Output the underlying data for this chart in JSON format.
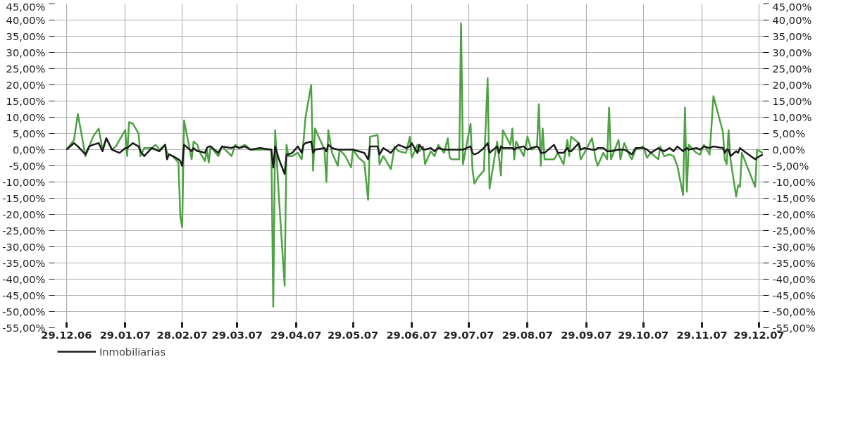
{
  "chart_data": {
    "type": "line",
    "x": [
      "2006-12-29",
      "2007-01-02",
      "2007-01-04",
      "2007-01-08",
      "2007-01-10",
      "2007-01-12",
      "2007-01-15",
      "2007-01-17",
      "2007-01-19",
      "2007-01-22",
      "2007-01-24",
      "2007-01-26",
      "2007-01-29",
      "2007-01-30",
      "2007-01-31",
      "2007-02-02",
      "2007-02-05",
      "2007-02-06",
      "2007-02-08",
      "2007-02-12",
      "2007-02-14",
      "2007-02-16",
      "2007-02-19",
      "2007-02-20",
      "2007-02-21",
      "2007-02-23",
      "2007-02-26",
      "2007-02-27",
      "2007-02-28",
      "2007-03-01",
      "2007-03-05",
      "2007-03-06",
      "2007-03-08",
      "2007-03-09",
      "2007-03-12",
      "2007-03-13",
      "2007-03-14",
      "2007-03-15",
      "2007-03-19",
      "2007-03-21",
      "2007-03-26",
      "2007-03-28",
      "2007-03-30",
      "2007-04-02",
      "2007-04-05",
      "2007-04-10",
      "2007-04-16",
      "2007-04-17",
      "2007-04-18",
      "2007-04-20",
      "2007-04-23",
      "2007-04-24",
      "2007-04-25",
      "2007-04-27",
      "2007-04-30",
      "2007-05-02",
      "2007-05-03",
      "2007-05-04",
      "2007-05-07",
      "2007-05-08",
      "2007-05-09",
      "2007-05-14",
      "2007-05-15",
      "2007-05-16",
      "2007-05-18",
      "2007-05-21",
      "2007-05-22",
      "2007-05-25",
      "2007-05-28",
      "2007-05-29",
      "2007-06-01",
      "2007-06-04",
      "2007-06-06",
      "2007-06-07",
      "2007-06-11",
      "2007-06-12",
      "2007-06-14",
      "2007-06-18",
      "2007-06-20",
      "2007-06-22",
      "2007-06-26",
      "2007-06-28",
      "2007-06-29",
      "2007-07-02",
      "2007-07-03",
      "2007-07-05",
      "2007-07-06",
      "2007-07-09",
      "2007-07-11",
      "2007-07-13",
      "2007-07-16",
      "2007-07-18",
      "2007-07-19",
      "2007-07-20",
      "2007-07-24",
      "2007-07-25",
      "2007-07-26",
      "2007-07-30",
      "2007-07-31",
      "2007-08-01",
      "2007-08-03",
      "2007-08-06",
      "2007-08-08",
      "2007-08-09",
      "2007-08-13",
      "2007-08-14",
      "2007-08-15",
      "2007-08-16",
      "2007-08-20",
      "2007-08-21",
      "2007-08-22",
      "2007-08-23",
      "2007-08-27",
      "2007-08-29",
      "2007-08-31",
      "2007-09-03",
      "2007-09-04",
      "2007-09-05",
      "2007-09-06",
      "2007-09-07",
      "2007-09-12",
      "2007-09-14",
      "2007-09-17",
      "2007-09-19",
      "2007-09-20",
      "2007-09-21",
      "2007-09-25",
      "2007-09-26",
      "2007-09-28",
      "2007-10-02",
      "2007-10-04",
      "2007-10-05",
      "2007-10-08",
      "2007-10-10",
      "2007-10-11",
      "2007-10-12",
      "2007-10-16",
      "2007-10-17",
      "2007-10-19",
      "2007-10-22",
      "2007-10-23",
      "2007-10-25",
      "2007-10-29",
      "2007-10-31",
      "2007-11-02",
      "2007-11-06",
      "2007-11-07",
      "2007-11-09",
      "2007-11-12",
      "2007-11-14",
      "2007-11-16",
      "2007-11-19",
      "2007-11-20",
      "2007-11-21",
      "2007-11-22",
      "2007-11-26",
      "2007-11-28",
      "2007-11-30",
      "2007-12-03",
      "2007-12-05",
      "2007-12-10",
      "2007-12-11",
      "2007-12-12",
      "2007-12-13",
      "2007-12-14",
      "2007-12-17",
      "2007-12-18",
      "2007-12-19",
      "2007-12-20",
      "2007-12-27",
      "2007-12-28",
      "2007-12-31"
    ],
    "series": [
      {
        "name": "Inmobiliarias",
        "color": "#1a1a1a",
        "values": [
          0,
          2,
          1,
          -1.5,
          1,
          1.5,
          2,
          -0.5,
          3.5,
          0,
          -0.5,
          -1,
          0.5,
          0.5,
          1,
          2,
          1,
          -0.5,
          -2,
          0.5,
          0,
          -0.5,
          1.5,
          -3,
          -1.5,
          -2,
          -3,
          -3.5,
          -5,
          1.5,
          -0.5,
          0.5,
          -0.5,
          -0.5,
          -1,
          0.5,
          1,
          1,
          -1,
          1,
          0.5,
          1,
          0.5,
          1,
          0,
          0.5,
          0,
          -5.5,
          1,
          -3,
          -7.5,
          -1.5,
          -1.5,
          -1,
          1,
          -1,
          1.5,
          2,
          2.5,
          -1,
          0,
          0.5,
          -0.5,
          1.5,
          0.5,
          0,
          0,
          0,
          0,
          0,
          -0.5,
          -1,
          -3,
          1,
          1,
          -1.5,
          0.5,
          -1,
          0.5,
          1.5,
          0.5,
          1,
          2,
          -1,
          1.5,
          0,
          0,
          0.5,
          -0.5,
          0.5,
          0,
          0,
          0,
          0,
          0,
          0,
          0,
          1,
          -1,
          -1.5,
          -1,
          0.5,
          2,
          -1,
          1,
          -1,
          1,
          0.5,
          0.5,
          0.5,
          0,
          0.5,
          1,
          0,
          0.5,
          1,
          0.5,
          -1,
          -1,
          -1,
          1.5,
          -1,
          -1,
          0.5,
          -0.5,
          -0.5,
          2,
          0,
          0.5,
          0,
          0,
          0.5,
          0.5,
          -0.5,
          -0.5,
          -0.5,
          0,
          0,
          0,
          -1,
          -1.5,
          0.5,
          0.5,
          0,
          -1,
          0.5,
          0,
          -0.5,
          0.5,
          -0.5,
          1,
          -0.5,
          0,
          0.5,
          0,
          0.5,
          0,
          1,
          0.5,
          1,
          0.5,
          -1,
          0,
          0,
          -2,
          -0.5,
          -1,
          0.5,
          0,
          -3,
          -2.5,
          -1.5
        ]
      },
      {
        "color": "#4ea244",
        "values": [
          0,
          3,
          11,
          -2,
          1,
          4,
          6.5,
          0,
          3.5,
          0,
          1,
          3,
          6,
          -2,
          8.5,
          8,
          5,
          -2,
          0.5,
          0.5,
          1.5,
          0,
          1.5,
          -1,
          -1.5,
          -2,
          -4,
          -20.5,
          -24,
          9,
          -3,
          2.5,
          1.5,
          -0.5,
          -3.5,
          0,
          -4,
          1,
          -2,
          1,
          -2,
          1.5,
          0.5,
          1.5,
          0,
          0,
          0,
          -48.5,
          6,
          -15,
          -42,
          1.5,
          -2,
          -2,
          -1,
          -3,
          3,
          10,
          20,
          -6.5,
          6.5,
          0,
          -10,
          6,
          -1,
          -5,
          0,
          -2,
          -5.5,
          0,
          -2.5,
          -4,
          -15.5,
          4,
          4.5,
          -4.5,
          -2,
          -6,
          1,
          -0.5,
          -1,
          4,
          -2.5,
          1.5,
          -0.5,
          1,
          -4.5,
          -0.5,
          -2,
          1.5,
          -1,
          3.5,
          -2.5,
          -3,
          -3,
          39,
          -4.5,
          8,
          -6,
          -10.5,
          -8.5,
          -6.5,
          22,
          -12,
          2.5,
          -2.5,
          -8,
          6,
          1.5,
          6.5,
          -3,
          2.5,
          -2,
          4,
          0,
          1,
          14,
          -5,
          6.5,
          -3,
          -3,
          -1,
          -4.5,
          3,
          -2,
          4,
          2,
          -3,
          -1,
          3.5,
          -3,
          -5,
          -1,
          -3,
          13,
          -3,
          3,
          -3,
          2,
          -2,
          -3,
          0,
          1,
          -2.5,
          -1,
          -3,
          1,
          -2,
          -1.5,
          -2,
          -5,
          -14,
          13,
          -13,
          1.5,
          -1,
          -1.5,
          1.5,
          -1.5,
          16.5,
          5.5,
          -3,
          -4.5,
          6,
          -3,
          -14.5,
          -11,
          -11.5,
          -1,
          -11.5,
          0,
          -1
        ]
      }
    ],
    "xlim": [
      "2006-12-22",
      "2008-01-01"
    ],
    "xticks": [
      {
        "value": "2006-12-29",
        "label": "29.12.06"
      },
      {
        "value": "2007-01-29",
        "label": "29.01.07"
      },
      {
        "value": "2007-02-28",
        "label": "28.02.07"
      },
      {
        "value": "2007-03-29",
        "label": "29.03.07"
      },
      {
        "value": "2007-04-29",
        "label": "29.04.07"
      },
      {
        "value": "2007-05-29",
        "label": "29.05.07"
      },
      {
        "value": "2007-06-29",
        "label": "29.06.07"
      },
      {
        "value": "2007-07-29",
        "label": "29.07.07"
      },
      {
        "value": "2007-08-29",
        "label": "29.08.07"
      },
      {
        "value": "2007-09-29",
        "label": "29.09.07"
      },
      {
        "value": "2007-10-29",
        "label": "29.10.07"
      },
      {
        "value": "2007-11-29",
        "label": "29.11.07"
      },
      {
        "value": "2007-12-29",
        "label": "29.12.07"
      }
    ],
    "ylim": [
      -55,
      45
    ],
    "yticks": [
      {
        "value": 45,
        "label": "45,00%"
      },
      {
        "value": 40,
        "label": "40,00%"
      },
      {
        "value": 35,
        "label": "35,00%"
      },
      {
        "value": 30,
        "label": "30,00%"
      },
      {
        "value": 25,
        "label": "25,00%"
      },
      {
        "value": 20,
        "label": "20,00%"
      },
      {
        "value": 15,
        "label": "15,00%"
      },
      {
        "value": 10,
        "label": "10,00%"
      },
      {
        "value": 5,
        "label": "5,00%"
      },
      {
        "value": 0,
        "label": "0,00%"
      },
      {
        "value": -5,
        "label": "-5,00%"
      },
      {
        "value": -10,
        "label": "-10,00%"
      },
      {
        "value": -15,
        "label": "-15,00%"
      },
      {
        "value": -20,
        "label": "-20,00%"
      },
      {
        "value": -25,
        "label": "-25,00%"
      },
      {
        "value": -30,
        "label": "-30,00%"
      },
      {
        "value": -35,
        "label": "-35,00%"
      },
      {
        "value": -40,
        "label": "-40,00%"
      },
      {
        "value": -45,
        "label": "-45,00%"
      },
      {
        "value": -50,
        "label": "-50,00%"
      },
      {
        "value": -55,
        "label": "-55,00%"
      }
    ],
    "y2lim": [
      -55,
      45
    ],
    "y2ticks": [
      {
        "value": 45,
        "label": "45,00%"
      },
      {
        "value": 40,
        "label": "40,00%"
      },
      {
        "value": 35,
        "label": "35,00%"
      },
      {
        "value": 30,
        "label": "30,00%"
      },
      {
        "value": 25,
        "label": "25,00%"
      },
      {
        "value": 20,
        "label": "20,00%"
      },
      {
        "value": 15,
        "label": "15,00%"
      },
      {
        "value": 10,
        "label": "10,00%"
      },
      {
        "value": 5,
        "label": "5,00%"
      },
      {
        "value": 0,
        "label": "0,00%"
      },
      {
        "value": -5,
        "label": "-5,00%"
      },
      {
        "value": -10,
        "label": "-10,00%"
      },
      {
        "value": -15,
        "label": "-15,00%"
      },
      {
        "value": -20,
        "label": "-20,00%"
      },
      {
        "value": -25,
        "label": "-25,00%"
      },
      {
        "value": -30,
        "label": "-30,00%"
      },
      {
        "value": -35,
        "label": "-35,00%"
      },
      {
        "value": -40,
        "label": "-40,00%"
      },
      {
        "value": -45,
        "label": "-45,00%"
      },
      {
        "value": -50,
        "label": "-50,00%"
      },
      {
        "value": -55,
        "label": "-55,00%"
      }
    ],
    "grid": true,
    "legend": "bottom left",
    "line_style": "solid"
  }
}
